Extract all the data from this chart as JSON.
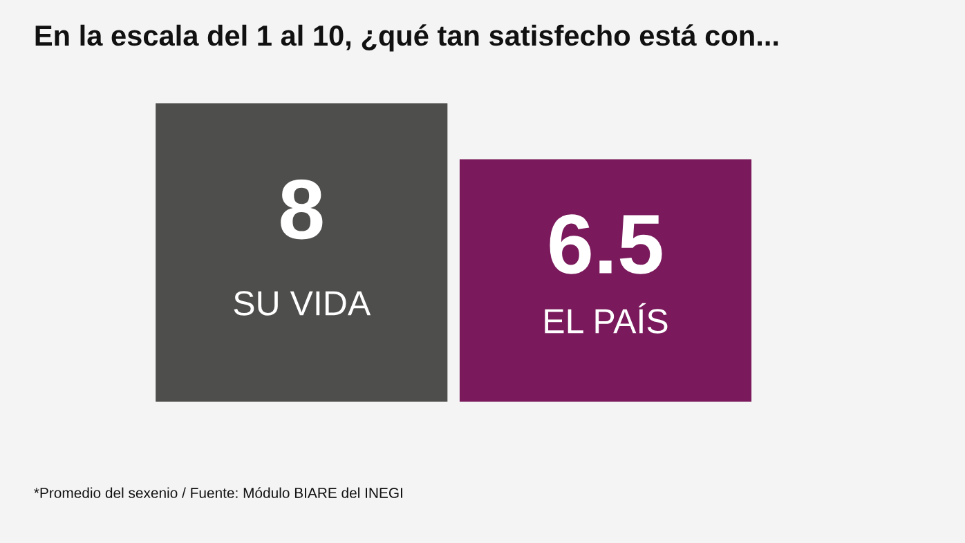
{
  "chart_data": {
    "type": "bar",
    "title": "En la escala del 1 al 10, ¿qué tan satisfecho está con...",
    "categories": [
      "SU VIDA",
      "EL PAÍS"
    ],
    "values": [
      8,
      6.5
    ],
    "colors": [
      "#4e4f4c",
      "#7a1a5c"
    ],
    "data_labels": true,
    "annotations": [
      "*Promedio del sexenio / Fuente: Módulo BIARE del INEGI"
    ]
  }
}
